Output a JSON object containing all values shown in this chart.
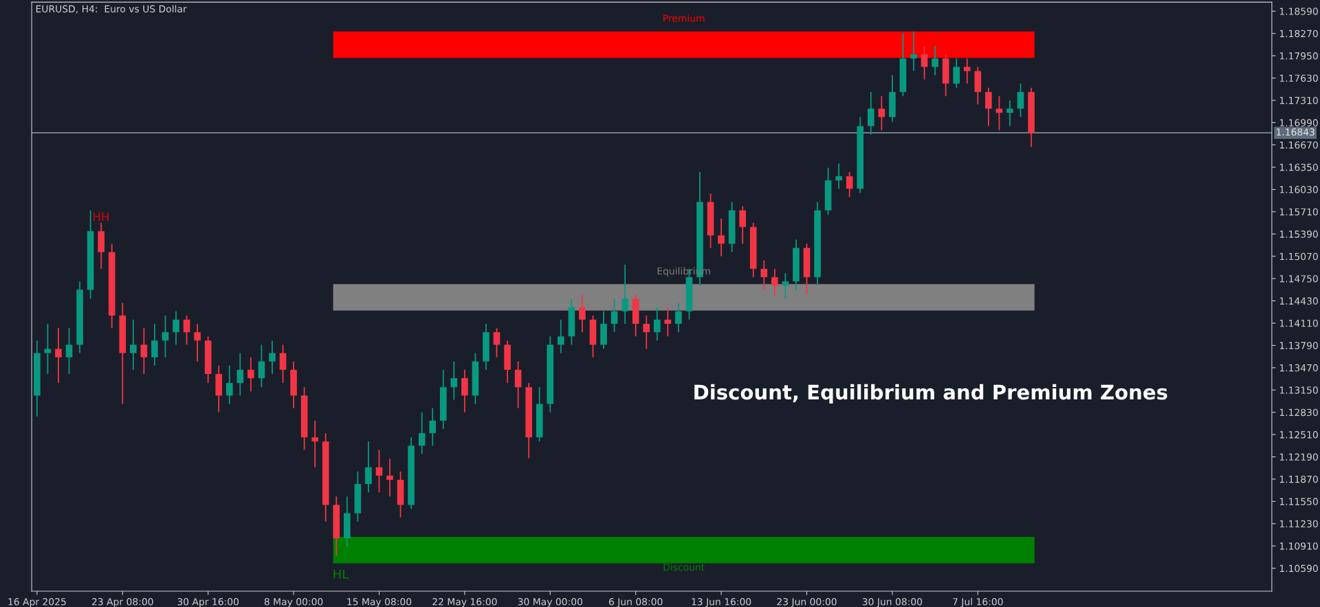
{
  "chart_data": {
    "type": "candlestick",
    "title": "EURUSD, H4:  Euro vs US Dollar",
    "categories": [
      "16 Apr 2025",
      null,
      null,
      null,
      null,
      null,
      null,
      null,
      "23 Apr 08:00",
      null,
      null,
      null,
      null,
      null,
      null,
      null,
      "30 Apr 16:00",
      null,
      null,
      null,
      null,
      null,
      null,
      null,
      "8 May 00:00",
      null,
      null,
      null,
      null,
      null,
      null,
      null,
      "15 May 08:00",
      null,
      null,
      null,
      null,
      null,
      null,
      null,
      "22 May 16:00",
      null,
      null,
      null,
      null,
      null,
      null,
      null,
      "30 May 00:00",
      null,
      null,
      null,
      null,
      null,
      null,
      null,
      "6 Jun 08:00",
      null,
      null,
      null,
      null,
      null,
      null,
      null,
      "13 Jun 16:00",
      null,
      null,
      null,
      null,
      null,
      null,
      null,
      "23 Jun 00:00",
      null,
      null,
      null,
      null,
      null,
      null,
      null,
      "30 Jun 08:00",
      null,
      null,
      null,
      null,
      null,
      null,
      null,
      "7 Jul 16:00",
      null,
      null,
      null,
      null,
      null,
      null,
      null,
      null,
      null,
      null,
      null,
      null,
      null,
      null,
      null,
      null,
      null,
      null,
      null,
      null,
      null,
      null,
      null,
      null,
      null,
      null,
      null
    ],
    "ohlc": [
      [
        1.1307,
        1.1386,
        1.1277,
        1.1368
      ],
      [
        1.1368,
        1.141,
        1.1338,
        1.1374
      ],
      [
        1.1374,
        1.1404,
        1.1325,
        1.1362
      ],
      [
        1.1362,
        1.1404,
        1.1338,
        1.138
      ],
      [
        1.138,
        1.1471,
        1.1368,
        1.1459
      ],
      [
        1.1459,
        1.1573,
        1.1446,
        1.1543
      ],
      [
        1.1543,
        1.1555,
        1.1489,
        1.1513
      ],
      [
        1.1513,
        1.1525,
        1.1404,
        1.1422
      ],
      [
        1.1422,
        1.144,
        1.1295,
        1.1368
      ],
      [
        1.1368,
        1.1416,
        1.1344,
        1.138
      ],
      [
        1.138,
        1.1404,
        1.1338,
        1.1362
      ],
      [
        1.1362,
        1.141,
        1.135,
        1.1386
      ],
      [
        1.1386,
        1.1422,
        1.1362,
        1.1398
      ],
      [
        1.1398,
        1.1428,
        1.138,
        1.1416
      ],
      [
        1.1416,
        1.1422,
        1.138,
        1.1398
      ],
      [
        1.1398,
        1.141,
        1.1356,
        1.1386
      ],
      [
        1.1386,
        1.1392,
        1.1325,
        1.1338
      ],
      [
        1.1338,
        1.135,
        1.1283,
        1.1307
      ],
      [
        1.1307,
        1.135,
        1.1295,
        1.1325
      ],
      [
        1.1325,
        1.1368,
        1.1307,
        1.1344
      ],
      [
        1.1344,
        1.1362,
        1.1313,
        1.1332
      ],
      [
        1.1332,
        1.138,
        1.1319,
        1.1356
      ],
      [
        1.1356,
        1.1386,
        1.1338,
        1.1368
      ],
      [
        1.1368,
        1.138,
        1.1325,
        1.1344
      ],
      [
        1.1344,
        1.1356,
        1.1289,
        1.1307
      ],
      [
        1.1307,
        1.1319,
        1.1229,
        1.1247
      ],
      [
        1.1247,
        1.1271,
        1.1204,
        1.1241
      ],
      [
        1.1241,
        1.1253,
        1.1126,
        1.115
      ],
      [
        1.115,
        1.1162,
        1.1077,
        1.1102
      ],
      [
        1.1102,
        1.1162,
        1.109,
        1.1138
      ],
      [
        1.1138,
        1.1198,
        1.1126,
        1.118
      ],
      [
        1.118,
        1.1241,
        1.1168,
        1.1204
      ],
      [
        1.1204,
        1.1229,
        1.1168,
        1.1192
      ],
      [
        1.1192,
        1.1216,
        1.1162,
        1.1186
      ],
      [
        1.1186,
        1.1198,
        1.1132,
        1.115
      ],
      [
        1.115,
        1.1247,
        1.1144,
        1.1235
      ],
      [
        1.1235,
        1.1283,
        1.1223,
        1.1253
      ],
      [
        1.1253,
        1.1289,
        1.1235,
        1.1271
      ],
      [
        1.1271,
        1.1344,
        1.1259,
        1.1319
      ],
      [
        1.1319,
        1.1356,
        1.1301,
        1.1332
      ],
      [
        1.1332,
        1.1344,
        1.1283,
        1.1307
      ],
      [
        1.1307,
        1.1368,
        1.1295,
        1.1356
      ],
      [
        1.1356,
        1.141,
        1.1344,
        1.1398
      ],
      [
        1.1398,
        1.1404,
        1.1362,
        1.138
      ],
      [
        1.138,
        1.1386,
        1.1325,
        1.1344
      ],
      [
        1.1344,
        1.1356,
        1.1289,
        1.1319
      ],
      [
        1.1319,
        1.1325,
        1.1217,
        1.1247
      ],
      [
        1.1247,
        1.1319,
        1.1241,
        1.1295
      ],
      [
        1.1295,
        1.1392,
        1.1283,
        1.138
      ],
      [
        1.138,
        1.1416,
        1.1368,
        1.1392
      ],
      [
        1.1392,
        1.1446,
        1.138,
        1.1434
      ],
      [
        1.1434,
        1.1452,
        1.1398,
        1.1416
      ],
      [
        1.1416,
        1.1422,
        1.1362,
        1.138
      ],
      [
        1.138,
        1.1428,
        1.1374,
        1.141
      ],
      [
        1.141,
        1.1446,
        1.1398,
        1.1428
      ],
      [
        1.1428,
        1.1495,
        1.141,
        1.1446
      ],
      [
        1.1446,
        1.1452,
        1.1392,
        1.141
      ],
      [
        1.141,
        1.1422,
        1.1374,
        1.1398
      ],
      [
        1.1398,
        1.1434,
        1.1386,
        1.1416
      ],
      [
        1.1416,
        1.1434,
        1.1392,
        1.141
      ],
      [
        1.141,
        1.144,
        1.1398,
        1.1428
      ],
      [
        1.1428,
        1.1489,
        1.1416,
        1.1477
      ],
      [
        1.1477,
        1.1628,
        1.1465,
        1.1585
      ],
      [
        1.1585,
        1.1597,
        1.1519,
        1.1537
      ],
      [
        1.1537,
        1.1561,
        1.1507,
        1.1525
      ],
      [
        1.1525,
        1.1585,
        1.1513,
        1.1573
      ],
      [
        1.1573,
        1.1579,
        1.1525,
        1.1549
      ],
      [
        1.1549,
        1.1555,
        1.1477,
        1.1489
      ],
      [
        1.1489,
        1.1501,
        1.1459,
        1.1477
      ],
      [
        1.1477,
        1.1489,
        1.145,
        1.1465
      ],
      [
        1.1465,
        1.1483,
        1.1446,
        1.1471
      ],
      [
        1.1471,
        1.1531,
        1.1459,
        1.1519
      ],
      [
        1.1519,
        1.1525,
        1.1452,
        1.1477
      ],
      [
        1.1477,
        1.1585,
        1.1465,
        1.1573
      ],
      [
        1.1573,
        1.1634,
        1.1567,
        1.1616
      ],
      [
        1.1616,
        1.164,
        1.1604,
        1.1622
      ],
      [
        1.1622,
        1.1628,
        1.1592,
        1.1604
      ],
      [
        1.1604,
        1.1707,
        1.1598,
        1.1694
      ],
      [
        1.1694,
        1.1743,
        1.1682,
        1.1719
      ],
      [
        1.1719,
        1.1737,
        1.1688,
        1.1707
      ],
      [
        1.1707,
        1.1767,
        1.17,
        1.1743
      ],
      [
        1.1743,
        1.1827,
        1.1737,
        1.1791
      ],
      [
        1.1791,
        1.183,
        1.1773,
        1.1797
      ],
      [
        1.1797,
        1.1809,
        1.1761,
        1.1779
      ],
      [
        1.1779,
        1.1809,
        1.1767,
        1.1791
      ],
      [
        1.1791,
        1.1797,
        1.1737,
        1.1755
      ],
      [
        1.1755,
        1.1791,
        1.1749,
        1.1779
      ],
      [
        1.1779,
        1.1791,
        1.1755,
        1.1773
      ],
      [
        1.1773,
        1.1779,
        1.1725,
        1.1743
      ],
      [
        1.1743,
        1.1749,
        1.1694,
        1.1719
      ],
      [
        1.1719,
        1.1737,
        1.1688,
        1.1713
      ],
      [
        1.1713,
        1.1731,
        1.1694,
        1.1719
      ],
      [
        1.1719,
        1.1755,
        1.1707,
        1.1743
      ],
      [
        1.1743,
        1.1749,
        1.1664,
        1.1684
      ],
      null,
      null,
      null,
      null,
      null,
      null,
      null,
      null,
      null,
      null,
      null,
      null,
      null,
      null,
      null,
      null,
      null,
      null,
      null,
      null,
      null,
      null
    ],
    "colors": [
      "#089981",
      "#089981",
      "#f23645",
      "#089981",
      "#089981",
      "#089981",
      "#f23645",
      "#f23645",
      "#f23645",
      "#089981",
      "#f23645",
      "#089981",
      "#089981",
      "#089981",
      "#f23645",
      "#f23645",
      "#f23645",
      "#f23645",
      "#089981",
      "#089981",
      "#f23645",
      "#089981",
      "#089981",
      "#f23645",
      "#f23645",
      "#f23645",
      "#f23645",
      "#f23645",
      "#f23645",
      "#089981",
      "#089981",
      "#089981",
      "#f23645",
      "#f23645",
      "#f23645",
      "#089981",
      "#089981",
      "#089981",
      "#089981",
      "#089981",
      "#f23645",
      "#089981",
      "#089981",
      "#f23645",
      "#f23645",
      "#f23645",
      "#f23645",
      "#089981",
      "#089981",
      "#089981",
      "#089981",
      "#f23645",
      "#f23645",
      "#089981",
      "#089981",
      "#089981",
      "#f23645",
      "#f23645",
      "#089981",
      "#f23645",
      "#089981",
      "#089981",
      "#089981",
      "#f23645",
      "#f23645",
      "#089981",
      "#f23645",
      "#f23645",
      "#f23645",
      "#f23645",
      "#089981",
      "#089981",
      "#f23645",
      "#089981",
      "#089981",
      "#089981",
      "#f23645",
      "#089981",
      "#089981",
      "#f23645",
      "#089981",
      "#089981",
      "#089981",
      "#f23645",
      "#089981",
      "#f23645",
      "#089981",
      "#f23645",
      "#f23645",
      "#f23645",
      "#f23645",
      "#089981",
      "#089981",
      "#f23645",
      null,
      null,
      null,
      null,
      null,
      null,
      null,
      null,
      null,
      null,
      null,
      null,
      null,
      null,
      null,
      null,
      null,
      null,
      null,
      null,
      null,
      null
    ],
    "ylim": [
      1.1026,
      1.1872
    ],
    "yticks": [
      {
        "value": 1.1859,
        "label": "1.18590"
      },
      {
        "value": 1.1827,
        "label": "1.18270"
      },
      {
        "value": 1.1795,
        "label": "1.17950"
      },
      {
        "value": 1.1763,
        "label": "1.17630"
      },
      {
        "value": 1.1731,
        "label": "1.17310"
      },
      {
        "value": 1.1699,
        "label": "1.16990"
      },
      {
        "value": 1.1667,
        "label": "1.16670"
      },
      {
        "value": 1.1635,
        "label": "1.16350"
      },
      {
        "value": 1.1603,
        "label": "1.16030"
      },
      {
        "value": 1.1571,
        "label": "1.15710"
      },
      {
        "value": 1.1539,
        "label": "1.15390"
      },
      {
        "value": 1.1507,
        "label": "1.15070"
      },
      {
        "value": 1.1475,
        "label": "1.14750"
      },
      {
        "value": 1.1443,
        "label": "1.14430"
      },
      {
        "value": 1.1411,
        "label": "1.14110"
      },
      {
        "value": 1.1379,
        "label": "1.13790"
      },
      {
        "value": 1.1347,
        "label": "1.13470"
      },
      {
        "value": 1.1315,
        "label": "1.13150"
      },
      {
        "value": 1.1283,
        "label": "1.12830"
      },
      {
        "value": 1.1251,
        "label": "1.12510"
      },
      {
        "value": 1.1219,
        "label": "1.12190"
      },
      {
        "value": 1.1187,
        "label": "1.11870"
      },
      {
        "value": 1.1155,
        "label": "1.11550"
      },
      {
        "value": 1.1123,
        "label": "1.11230"
      },
      {
        "value": 1.1091,
        "label": "1.10910"
      },
      {
        "value": 1.1059,
        "label": "1.10590"
      }
    ],
    "ref_lines": [
      {
        "axis": "y",
        "value": 1.16843,
        "label": "1.16843",
        "color": "#8a9bae"
      }
    ],
    "bands": [
      {
        "axis": "y",
        "from": 1.1792,
        "to": 1.183,
        "label": "Premium",
        "color": "#ff0000"
      },
      {
        "axis": "y",
        "from": 1.1429,
        "to": 1.1467,
        "label": "Equilibrium",
        "color": "#808080"
      },
      {
        "axis": "y",
        "from": 1.1066,
        "to": 1.1104,
        "label": "Discount",
        "color": "#008000"
      }
    ],
    "annotations": [
      "HH",
      "HL",
      "Discount, Equilibrium and Premium Zones"
    ],
    "grid": false
  }
}
